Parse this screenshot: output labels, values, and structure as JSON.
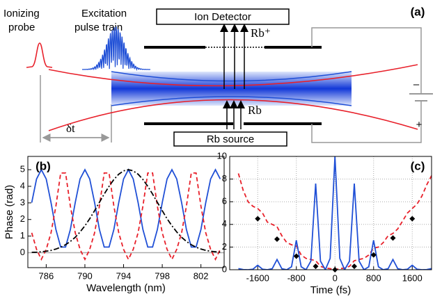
{
  "diagram": {
    "panel_label": "(a)",
    "probe_label": [
      "Ionizing",
      "probe"
    ],
    "train_label": [
      "Excitation",
      "pulse train"
    ],
    "detector": "Ion Detector",
    "ion": "Rb⁺",
    "atom": "Rb",
    "source": "Rb source",
    "delay": "δt",
    "minus": "–",
    "plus": "+"
  },
  "chart_data": [
    {
      "type": "line",
      "panel_label": "(b)",
      "x_label": "Wavelength (nm)",
      "y_label": "Phase (rad)",
      "xlim": [
        784.1,
        804.4
      ],
      "ylim": [
        -0.9,
        5.8
      ],
      "xticks": [
        786,
        790,
        794,
        798,
        802
      ],
      "yticks": [
        0,
        1,
        2,
        3,
        4,
        5
      ],
      "grid": false,
      "zero_line": true,
      "x": [
        784.5,
        785,
        785.5,
        786,
        786.5,
        787,
        787.5,
        788,
        788.5,
        789,
        789.5,
        790,
        790.5,
        791,
        791.5,
        792,
        792.5,
        793,
        793.5,
        794,
        794.5,
        795,
        795.5,
        796,
        796.5,
        797,
        797.5,
        798,
        798.5,
        799,
        799.5,
        800,
        800.5,
        801,
        801.5,
        802,
        802.5,
        803,
        803.5,
        804
      ],
      "series": [
        {
          "color": "#1f4fd6",
          "line_style": "solid",
          "values": [
            3.02,
            4.44,
            5,
            4.44,
            3.02,
            1.4,
            0.34,
            0.34,
            1.4,
            3.02,
            4.44,
            5,
            4.44,
            3.02,
            1.4,
            0.34,
            0.34,
            1.4,
            3.02,
            4.44,
            5,
            4.44,
            3.02,
            1.4,
            0.34,
            0.34,
            1.4,
            3.02,
            4.44,
            5,
            4.44,
            3.02,
            1.4,
            0.34,
            0.34,
            1.4,
            3.02,
            4.44,
            5,
            4.44
          ]
        },
        {
          "color": "#e8202a",
          "line_style": "dashed",
          "values": [
            1.2,
            0.2,
            -0.4,
            0.2,
            1.2,
            2.8,
            4.8,
            4.8,
            2.8,
            1.2,
            0.2,
            -0.4,
            0.2,
            1.2,
            2.8,
            4.8,
            4.8,
            2.8,
            1.2,
            0.2,
            -0.4,
            0.2,
            1.2,
            2.8,
            4.8,
            4.8,
            2.8,
            1.2,
            0.2,
            -0.4,
            0.2,
            1.2,
            2.8,
            4.8,
            4.8,
            2.8,
            1.2,
            0.2,
            -0.4,
            0.2
          ]
        },
        {
          "color": "#000000",
          "line_style": "dash-dot",
          "values": [
            0.02,
            0.03,
            0.06,
            0.09,
            0.14,
            0.22,
            0.33,
            0.48,
            0.68,
            0.93,
            1.25,
            1.62,
            2.05,
            2.53,
            3.03,
            3.53,
            4.0,
            4.41,
            4.73,
            4.93,
            5,
            4.93,
            4.73,
            4.41,
            4.0,
            3.53,
            3.03,
            2.53,
            2.05,
            1.62,
            1.25,
            0.93,
            0.68,
            0.48,
            0.33,
            0.22,
            0.14,
            0.09,
            0.06,
            0.03
          ]
        }
      ]
    },
    {
      "type": "line",
      "panel_label": "(c)",
      "x_label": "Time (fs)",
      "xlim": [
        -2180,
        2000
      ],
      "ylim": [
        0,
        10
      ],
      "xticks": [
        -1600,
        -800,
        0,
        800,
        1600
      ],
      "yticks": [
        0,
        2,
        4,
        6,
        8,
        10
      ],
      "grid": true,
      "zero_line": false,
      "x": [
        -2000,
        -1900,
        -1800,
        -1700,
        -1600,
        -1500,
        -1400,
        -1300,
        -1200,
        -1100,
        -1000,
        -900,
        -800,
        -700,
        -600,
        -500,
        -400,
        -300,
        -200,
        -100,
        0,
        100,
        200,
        300,
        400,
        500,
        600,
        700,
        800,
        900,
        1000,
        1100,
        1200,
        1300,
        1400,
        1500,
        1600,
        1700,
        1800,
        1900,
        2000
      ],
      "series": [
        {
          "color": "#e8202a",
          "line_style": "dashed",
          "values": [
            8.5,
            7.0,
            6.0,
            5.6,
            5.4,
            5.0,
            4.2,
            4.0,
            3.8,
            3.0,
            2.4,
            2.2,
            2.1,
            1.3,
            1.0,
            0.9,
            0.8,
            0.3,
            0.15,
            0.1,
            0,
            0.1,
            0.15,
            0.3,
            0.8,
            0.9,
            1.0,
            1.3,
            1.9,
            2.0,
            2.4,
            3.0,
            3.2,
            3.6,
            4.3,
            5.0,
            5.4,
            5.8,
            6.5,
            7.5,
            8.3
          ]
        },
        {
          "color": "#1f4fd6",
          "line_style": "solid",
          "values": [
            0.1,
            0.01,
            0,
            0.04,
            0.4,
            0.04,
            0,
            0.09,
            0.9,
            0.09,
            0,
            0.26,
            2.6,
            0.26,
            0,
            0.76,
            7.6,
            0.76,
            0,
            1.0,
            10,
            1.0,
            0,
            0.76,
            7.6,
            0.76,
            0,
            0.26,
            2.6,
            0.26,
            0,
            0.09,
            0.9,
            0.09,
            0,
            0.04,
            0.4,
            0.04,
            0,
            0.01,
            0.1
          ]
        },
        {
          "color": "#000000",
          "line_style": "none",
          "marker": "diamond",
          "x": [
            -1600,
            -1200,
            -800,
            -400,
            0,
            400,
            800,
            1200,
            1600
          ],
          "values": [
            4.5,
            2.7,
            1.2,
            0.3,
            0,
            0.3,
            1.3,
            2.8,
            4.5
          ]
        }
      ]
    }
  ]
}
